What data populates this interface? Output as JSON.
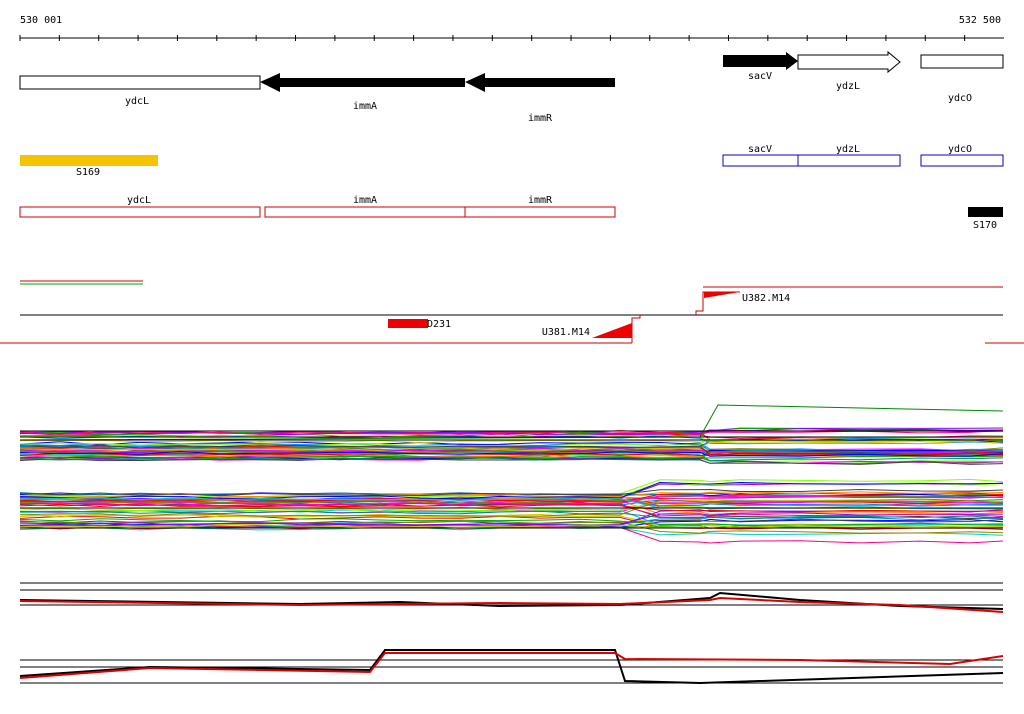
{
  "ruler": {
    "start": "530 001",
    "end": "532 500"
  },
  "genes": [
    {
      "label": "ydcL"
    },
    {
      "label": "immA"
    },
    {
      "label": "immR"
    },
    {
      "label": "sacV"
    },
    {
      "label": "ydzL"
    },
    {
      "label": "ydcO"
    }
  ],
  "segment_tracks": {
    "s169": "S169",
    "s170": "S170"
  },
  "blue_features": [
    {
      "label": "sacV"
    },
    {
      "label": "ydzL"
    },
    {
      "label": "ydcO"
    }
  ],
  "red_features": [
    {
      "label": "ydcL"
    },
    {
      "label": "immA"
    },
    {
      "label": "immR"
    }
  ],
  "transcripts": {
    "d231": "D231",
    "u381": "U381.M14",
    "u382": "U382.M14"
  }
}
